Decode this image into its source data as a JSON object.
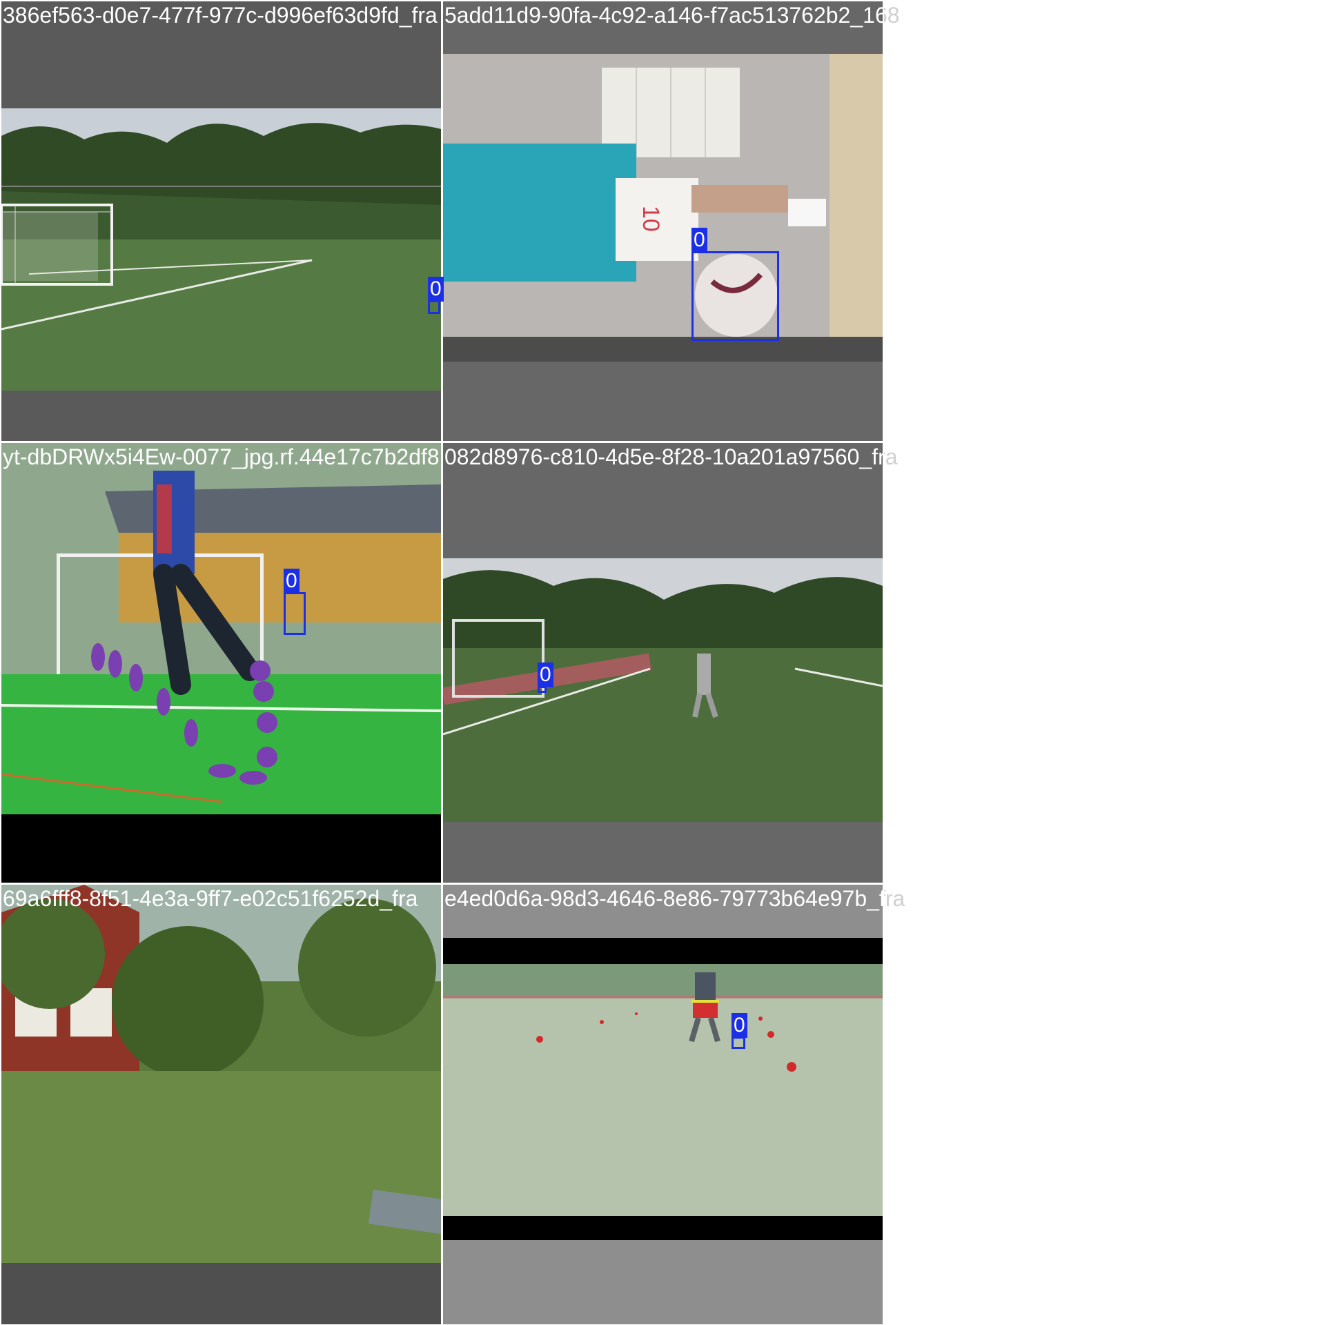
{
  "grid": {
    "tiles": [
      {
        "caption": "386ef563-d0e7-477f-977c-d996ef63d9fd_fra",
        "box_label": "0"
      },
      {
        "caption": "5add11d9-90fa-4c92-a146-f7ac513762b2_168",
        "box_label": "0"
      },
      {
        "caption": "yt-dbDRWx5i4Ew-0077_jpg.rf.44e17c7b2df8",
        "box_label": "0"
      },
      {
        "caption": "082d8976-c810-4d5e-8f28-10a201a97560_fra",
        "box_label": "0"
      },
      {
        "caption": "69a6fff8-8f51-4e3a-9ff7-e02c51f6252d_fra",
        "box_label": ""
      },
      {
        "caption": "e4ed0d6a-98d3-4646-8e86-79773b64e97b_fra",
        "box_label": "0"
      }
    ]
  },
  "colors": {
    "box": "#1a2fe6",
    "pad_dark": "#5a5a5a",
    "pad_gray": "#676767",
    "pad_light": "#8e8e8e",
    "caption_on_image": "#ffffff",
    "caption_off_image": "#cfcfcf"
  }
}
